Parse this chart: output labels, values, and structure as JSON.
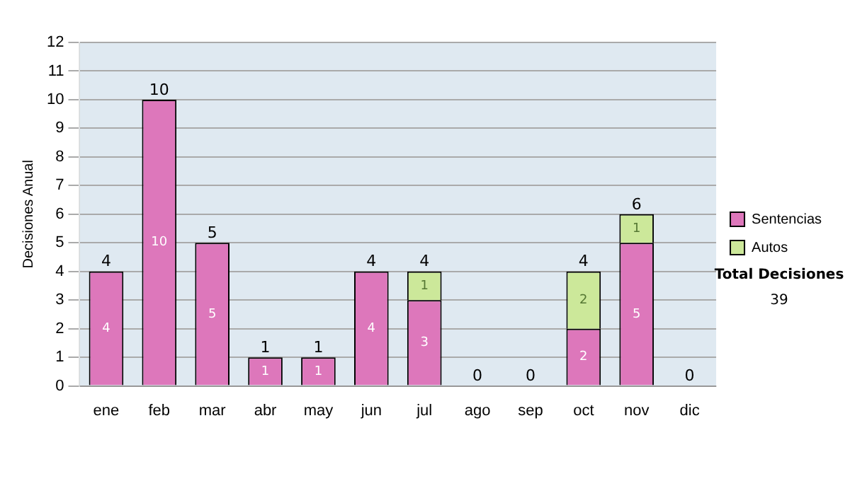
{
  "chart_data": {
    "type": "bar",
    "stacked": true,
    "ylabel": "Decisiones Anual",
    "categories": [
      "ene",
      "feb",
      "mar",
      "abr",
      "may",
      "jun",
      "jul",
      "ago",
      "sep",
      "oct",
      "nov",
      "dic"
    ],
    "series": [
      {
        "name": "Sentencias",
        "color": "#dd77bb",
        "values": [
          4,
          10,
          5,
          1,
          1,
          4,
          3,
          0,
          0,
          2,
          5,
          0
        ],
        "value_labels": [
          "4",
          "10",
          "5",
          "1",
          "1",
          "4",
          "3",
          null,
          null,
          "2",
          "5",
          null
        ]
      },
      {
        "name": "Autos",
        "color": "#cce89a",
        "values": [
          0,
          0,
          0,
          0,
          0,
          0,
          1,
          0,
          0,
          2,
          1,
          0
        ],
        "value_labels": [
          null,
          null,
          null,
          null,
          null,
          null,
          "1",
          null,
          null,
          "2",
          "1",
          null
        ]
      }
    ],
    "totals": [
      "4",
      "10",
      "5",
      "1",
      "1",
      "4",
      "4",
      "0",
      "0",
      "4",
      "6",
      "0"
    ],
    "ylim": [
      0,
      12
    ],
    "yticks": [
      0,
      1,
      2,
      3,
      4,
      5,
      6,
      7,
      8,
      9,
      10,
      11,
      12
    ],
    "grid": "y",
    "legend": "right",
    "annotations": [
      "Total Decisiones",
      "39"
    ]
  }
}
